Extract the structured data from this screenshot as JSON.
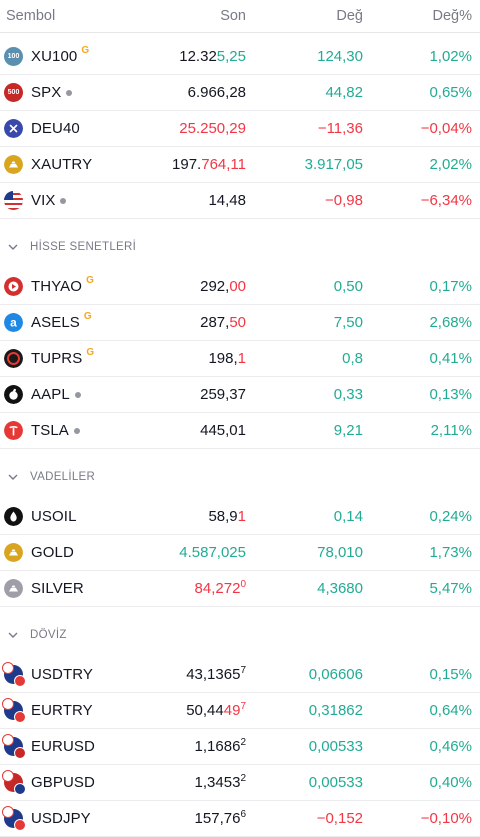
{
  "header": {
    "symbol": "Sembol",
    "last": "Son",
    "change": "Değ",
    "change_pct": "Değ%"
  },
  "indices": [
    {
      "id": "xu100",
      "logo_text": "100",
      "ticker": "XU100",
      "badge": "G",
      "last_a": "12.32",
      "last_b": "5,25",
      "last_b_dir": "pos",
      "last_sup": "",
      "chg": "124,30",
      "chgp": "1,02%",
      "dir": "pos",
      "logo_color": "#5b8fb0"
    },
    {
      "id": "spx",
      "logo_text": "500",
      "ticker": "SPX",
      "badge": "dot",
      "last_a": "6.966,28",
      "last_b": "",
      "last_b_dir": "neu",
      "last_sup": "",
      "chg": "44,82",
      "chgp": "0,65%",
      "dir": "pos",
      "logo_color": "#c62828"
    },
    {
      "id": "deu40",
      "logo_text": "",
      "ticker": "DEU40",
      "badge": "",
      "last_a": "25.250,29",
      "last_b": "",
      "last_b_dir": "neg",
      "last_a_dir": "neg",
      "last_sup": "",
      "chg": "−11,36",
      "chgp": "−0,04%",
      "dir": "neg",
      "logo_color": "#3949ab"
    },
    {
      "id": "xautry",
      "logo_text": "",
      "ticker": "XAUTRY",
      "badge": "",
      "last_a": "197.",
      "last_b": "764,11",
      "last_b_dir": "neg",
      "last_sup": "",
      "chg": "3.917,05",
      "chgp": "2,02%",
      "dir": "pos",
      "logo_color": "#d9a520"
    },
    {
      "id": "vix",
      "logo_text": "",
      "ticker": "VIX",
      "badge": "dot",
      "last_a": "14,48",
      "last_b": "",
      "last_b_dir": "neu",
      "last_sup": "",
      "chg": "−0,98",
      "chgp": "−6,34%",
      "dir": "neg",
      "logo_color": "#1e3a8a"
    }
  ],
  "sections": {
    "stocks": "HİSSE SENETLERİ",
    "futures": "VADELİLER",
    "fx": "DÖVİZ"
  },
  "stocks": [
    {
      "id": "thyao",
      "ticker": "THYAO",
      "badge": "G",
      "last_a": "292,",
      "last_b": "00",
      "last_b_dir": "neg",
      "last_sup": "",
      "chg": "0,50",
      "chgp": "0,17%",
      "dir": "pos",
      "logo_color": "#d32f2f"
    },
    {
      "id": "asels",
      "ticker": "ASELS",
      "badge": "G",
      "last_a": "287,",
      "last_b": "50",
      "last_b_dir": "neg",
      "last_sup": "",
      "chg": "7,50",
      "chgp": "2,68%",
      "dir": "pos",
      "logo_color": "#1e88e5"
    },
    {
      "id": "tuprs",
      "ticker": "TUPRS",
      "badge": "G",
      "last_a": "198,",
      "last_b": "1",
      "last_b_dir": "neg",
      "last_sup": "",
      "chg": "0,8",
      "chgp": "0,41%",
      "dir": "pos",
      "logo_color": "#1a1a1a"
    },
    {
      "id": "aapl",
      "ticker": "AAPL",
      "badge": "dot",
      "last_a": "259,37",
      "last_b": "",
      "last_b_dir": "neu",
      "last_sup": "",
      "chg": "0,33",
      "chgp": "0,13%",
      "dir": "pos",
      "logo_color": "#111111"
    },
    {
      "id": "tsla",
      "ticker": "TSLA",
      "badge": "dot",
      "last_a": "445,01",
      "last_b": "",
      "last_b_dir": "neu",
      "last_sup": "",
      "chg": "9,21",
      "chgp": "2,11%",
      "dir": "pos",
      "logo_color": "#e53935"
    }
  ],
  "futures": [
    {
      "id": "usoil",
      "ticker": "USOIL",
      "badge": "",
      "last_a": "58,9",
      "last_b": "1",
      "last_b_dir": "neg",
      "last_sup": "",
      "chg": "0,14",
      "chgp": "0,24%",
      "dir": "pos",
      "logo_color": "#111111"
    },
    {
      "id": "gold",
      "ticker": "GOLD",
      "badge": "",
      "last_a": "",
      "last_b": "4.587,025",
      "last_b_dir": "pos",
      "last_sup": "",
      "chg": "78,010",
      "chgp": "1,73%",
      "dir": "pos",
      "logo_color": "#d9a520"
    },
    {
      "id": "silver",
      "ticker": "SILVER",
      "badge": "",
      "last_a": "",
      "last_b": "84,272",
      "last_b_dir": "neg",
      "last_sup": "0",
      "chg": "4,3680",
      "chgp": "5,47%",
      "dir": "pos",
      "logo_color": "#9e9ea8"
    }
  ],
  "fx": [
    {
      "id": "usdtry",
      "ticker": "USDTRY",
      "last_a": "43,1365",
      "last_b": "",
      "last_b_dir": "neu",
      "last_sup": "7",
      "chg": "0,06606",
      "chgp": "0,15%",
      "dir": "pos",
      "flag_a": "#1e3a8a",
      "flag_b": "#e53935"
    },
    {
      "id": "eurtry",
      "ticker": "EURTRY",
      "last_a": "50,44",
      "last_b": "49",
      "last_b_dir": "neg",
      "last_sup": "7",
      "chg": "0,31862",
      "chgp": "0,64%",
      "dir": "pos",
      "flag_a": "#1e3a8a",
      "flag_b": "#e53935"
    },
    {
      "id": "eurusd",
      "ticker": "EURUSD",
      "last_a": "1,1686",
      "last_b": "",
      "last_b_dir": "neu",
      "last_sup": "2",
      "chg": "0,00533",
      "chgp": "0,46%",
      "dir": "pos",
      "flag_a": "#1e3a8a",
      "flag_b": "#c62828"
    },
    {
      "id": "gbpusd",
      "ticker": "GBPUSD",
      "last_a": "1,3453",
      "last_b": "",
      "last_b_dir": "neu",
      "last_sup": "2",
      "chg": "0,00533",
      "chgp": "0,40%",
      "dir": "pos",
      "flag_a": "#c62828",
      "flag_b": "#1e3a8a"
    },
    {
      "id": "usdjpy",
      "ticker": "USDJPY",
      "last_a": "157,76",
      "last_b": "",
      "last_b_dir": "neu",
      "last_sup": "6",
      "chg": "−0,152",
      "chgp": "−0,10%",
      "dir": "neg",
      "flag_a": "#1e3a8a",
      "flag_b": "#e53935"
    }
  ]
}
